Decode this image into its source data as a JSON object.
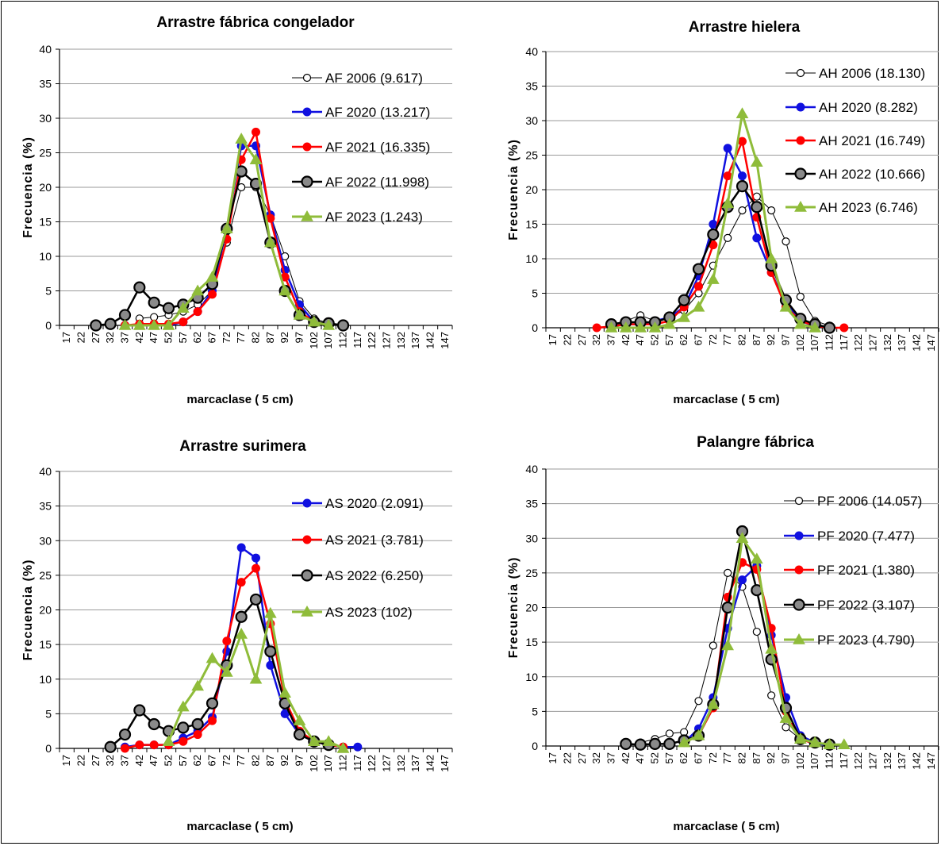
{
  "chart_data": [
    {
      "type": "line",
      "title": "Arrastre fábrica congelador",
      "xlabel": "marcaclase ( 5 cm)",
      "ylabel": "Frecuencia  (%)",
      "ylim": [
        0,
        40
      ],
      "yticks": [
        0,
        5,
        10,
        15,
        20,
        25,
        30,
        35,
        40
      ],
      "categories": [
        "17",
        "22",
        "27",
        "32",
        "37",
        "42",
        "47",
        "52",
        "57",
        "62",
        "67",
        "72",
        "77",
        "82",
        "87",
        "92",
        "97",
        "102",
        "107",
        "112",
        "117",
        "122",
        "127",
        "132",
        "137",
        "142",
        "147"
      ],
      "grid": "horizontal",
      "legend_position": "right",
      "series": [
        {
          "name": "AF 2006 (9.617)",
          "color": "#000000",
          "marker": "open-circle",
          "lineWidth": 1,
          "x": [
            42,
            47,
            52,
            57,
            62,
            67,
            72,
            77,
            82,
            87,
            92,
            97,
            102,
            107
          ],
          "y": [
            1,
            1.2,
            1.5,
            2,
            3,
            5,
            12,
            20,
            20,
            16,
            10,
            3.5,
            1,
            0.3
          ]
        },
        {
          "name": "AF 2020 (13.217)",
          "color": "#1010e0",
          "marker": "filled-circle",
          "lineWidth": 2.5,
          "x": [
            37,
            42,
            47,
            52,
            57,
            62,
            67,
            72,
            77,
            82,
            87,
            92,
            97,
            102,
            107
          ],
          "y": [
            0,
            0,
            0,
            0,
            0.5,
            2,
            5,
            14,
            26,
            26,
            16,
            8,
            3,
            0.5,
            0
          ]
        },
        {
          "name": "AF 2021 (16.335)",
          "color": "#ff0000",
          "marker": "filled-circle",
          "lineWidth": 2.5,
          "x": [
            37,
            42,
            47,
            52,
            57,
            62,
            67,
            72,
            77,
            82,
            87,
            92,
            97,
            102,
            107
          ],
          "y": [
            0,
            0.2,
            0.2,
            0.2,
            0.5,
            2,
            4.5,
            12.5,
            24,
            28,
            15.5,
            7,
            2,
            0.5,
            0
          ]
        },
        {
          "name": "AF 2022 (11.998)",
          "color": "#000000",
          "marker": "grey-circle",
          "lineWidth": 2.5,
          "x": [
            27,
            32,
            37,
            42,
            47,
            52,
            57,
            62,
            67,
            72,
            77,
            82,
            87,
            92,
            97,
            102,
            107,
            112
          ],
          "y": [
            0,
            0.2,
            1.5,
            5.5,
            3.3,
            2.5,
            3,
            4,
            6,
            14,
            22.3,
            20.5,
            12,
            5,
            1.5,
            0.5,
            0.3,
            0
          ]
        },
        {
          "name": "AF 2023 (1.243)",
          "color": "#8fbc3a",
          "marker": "triangle",
          "lineWidth": 3,
          "x": [
            37,
            42,
            47,
            52,
            57,
            62,
            67,
            72,
            77,
            82,
            87,
            92,
            97,
            102,
            107
          ],
          "y": [
            0,
            0,
            0,
            0,
            2.5,
            5,
            7,
            14,
            27,
            24,
            12,
            5,
            1.5,
            0.5,
            0
          ]
        }
      ]
    },
    {
      "type": "line",
      "title": "Arrastre hielera",
      "xlabel": "marcaclase ( 5 cm)",
      "ylabel": "Frecuencia  (%)",
      "ylim": [
        0,
        40
      ],
      "yticks": [
        0,
        5,
        10,
        15,
        20,
        25,
        30,
        35,
        40
      ],
      "categories": [
        "17",
        "22",
        "27",
        "32",
        "37",
        "42",
        "47",
        "52",
        "57",
        "62",
        "67",
        "72",
        "77",
        "82",
        "87",
        "92",
        "97",
        "102",
        "107",
        "112",
        "117",
        "122",
        "127",
        "132",
        "137",
        "142",
        "147"
      ],
      "grid": "horizontal",
      "legend_position": "right",
      "series": [
        {
          "name": "AH 2006 (18.130)",
          "color": "#000000",
          "marker": "open-circle",
          "lineWidth": 1,
          "x": [
            37,
            42,
            47,
            52,
            57,
            62,
            67,
            72,
            77,
            82,
            87,
            92,
            97,
            102,
            107,
            112
          ],
          "y": [
            0.5,
            1,
            1.8,
            1,
            1.5,
            2.5,
            5,
            9,
            13,
            17,
            19,
            17,
            12.5,
            4.5,
            1,
            0.3
          ]
        },
        {
          "name": "AH 2020 (8.282)",
          "color": "#1010e0",
          "marker": "filled-circle",
          "lineWidth": 2.5,
          "x": [
            37,
            42,
            47,
            52,
            57,
            62,
            67,
            72,
            77,
            82,
            87,
            92,
            97,
            102,
            107
          ],
          "y": [
            0.2,
            0.5,
            0.5,
            1,
            1.5,
            3,
            7.5,
            15,
            26,
            22,
            13,
            8,
            3.5,
            1,
            0.2
          ]
        },
        {
          "name": "AH 2021 (16.749)",
          "color": "#ff0000",
          "marker": "filled-circle",
          "lineWidth": 2.5,
          "x": [
            32,
            37,
            42,
            47,
            52,
            57,
            62,
            67,
            72,
            77,
            82,
            87,
            92,
            97,
            102,
            107,
            112,
            117
          ],
          "y": [
            0,
            0.2,
            0.5,
            0.5,
            0.5,
            1,
            3,
            6,
            12,
            22,
            27,
            16,
            8,
            3,
            1,
            0.3,
            0,
            0
          ]
        },
        {
          "name": "AH 2022 (10.666)",
          "color": "#000000",
          "marker": "grey-circle",
          "lineWidth": 2.5,
          "x": [
            37,
            42,
            47,
            52,
            57,
            62,
            67,
            72,
            77,
            82,
            87,
            92,
            97,
            102,
            107,
            112
          ],
          "y": [
            0.5,
            0.8,
            0.8,
            0.8,
            1.5,
            4,
            8.5,
            13.5,
            17.5,
            20.5,
            17.5,
            9,
            4,
            1.3,
            0.5,
            0
          ]
        },
        {
          "name": "AH 2023 (6.746)",
          "color": "#8fbc3a",
          "marker": "triangle",
          "lineWidth": 3,
          "x": [
            37,
            42,
            47,
            52,
            57,
            62,
            67,
            72,
            77,
            82,
            87,
            92,
            97,
            102,
            107
          ],
          "y": [
            0,
            0,
            0,
            0,
            0.5,
            1.5,
            3,
            7,
            18,
            31,
            24,
            10,
            3,
            0.5,
            0
          ]
        }
      ]
    },
    {
      "type": "line",
      "title": "Arrastre surimera",
      "xlabel": "marcaclase ( 5 cm)",
      "ylabel": "Frecuencia  (%)",
      "ylim": [
        0,
        40
      ],
      "yticks": [
        0,
        5,
        10,
        15,
        20,
        25,
        30,
        35,
        40
      ],
      "categories": [
        "17",
        "22",
        "27",
        "32",
        "37",
        "42",
        "47",
        "52",
        "57",
        "62",
        "67",
        "72",
        "77",
        "82",
        "87",
        "92",
        "97",
        "102",
        "107",
        "112",
        "117",
        "122",
        "127",
        "132",
        "137",
        "142",
        "147"
      ],
      "grid": "horizontal",
      "legend_position": "right",
      "series": [
        {
          "name": "AS 2020 (2.091)",
          "color": "#1010e0",
          "marker": "filled-circle",
          "lineWidth": 2.5,
          "x": [
            37,
            42,
            47,
            52,
            57,
            62,
            67,
            72,
            77,
            82,
            87,
            92,
            97,
            102,
            107,
            112,
            117
          ],
          "y": [
            0.2,
            0.5,
            0.5,
            0.5,
            1.5,
            2.5,
            4.5,
            14,
            29,
            27.5,
            12,
            5,
            2,
            1,
            0.5,
            0.2,
            0.2
          ]
        },
        {
          "name": "AS 2021 (3.781)",
          "color": "#ff0000",
          "marker": "filled-circle",
          "lineWidth": 2.5,
          "x": [
            37,
            42,
            47,
            52,
            57,
            62,
            67,
            72,
            77,
            82,
            87,
            92,
            97,
            102,
            107,
            112
          ],
          "y": [
            0,
            0.5,
            0.5,
            0.5,
            1,
            2,
            4,
            15.5,
            24,
            26,
            18,
            7,
            2.5,
            1,
            0.5,
            0.2
          ]
        },
        {
          "name": "AS 2022 (6.250)",
          "color": "#000000",
          "marker": "grey-circle",
          "lineWidth": 2.5,
          "x": [
            32,
            37,
            42,
            47,
            52,
            57,
            62,
            67,
            72,
            77,
            82,
            87,
            92,
            97,
            102,
            107
          ],
          "y": [
            0.2,
            2,
            5.5,
            3.5,
            2.5,
            3,
            3.5,
            6.5,
            12,
            19,
            21.5,
            14,
            6.5,
            2,
            1,
            0.5
          ]
        },
        {
          "name": "AS 2023 (102)",
          "color": "#8fbc3a",
          "marker": "triangle",
          "lineWidth": 3,
          "x": [
            52,
            57,
            62,
            67,
            72,
            77,
            82,
            87,
            92,
            97,
            102,
            107,
            112
          ],
          "y": [
            1,
            6,
            9,
            13,
            11,
            16.5,
            10,
            19.5,
            8,
            4,
            1,
            1,
            0
          ]
        }
      ]
    },
    {
      "type": "line",
      "title": "Palangre fábrica",
      "xlabel": "marcaclase ( 5 cm)",
      "ylabel": "Frecuencia  (%)",
      "ylim": [
        0,
        40
      ],
      "yticks": [
        0,
        5,
        10,
        15,
        20,
        25,
        30,
        35,
        40
      ],
      "categories": [
        "17",
        "22",
        "27",
        "32",
        "37",
        "42",
        "47",
        "52",
        "57",
        "62",
        "67",
        "72",
        "77",
        "82",
        "87",
        "92",
        "97",
        "102",
        "107",
        "112",
        "117",
        "122",
        "127",
        "132",
        "137",
        "142",
        "147"
      ],
      "grid": "horizontal",
      "legend_position": "right",
      "series": [
        {
          "name": "PF 2006 (14.057)",
          "color": "#000000",
          "marker": "open-circle",
          "lineWidth": 1,
          "x": [
            47,
            52,
            57,
            62,
            67,
            72,
            77,
            82,
            87,
            92,
            97,
            102,
            107
          ],
          "y": [
            0.5,
            1,
            1.8,
            2,
            6.5,
            14.5,
            25,
            23,
            16.5,
            7.3,
            2.7,
            1,
            0.3
          ]
        },
        {
          "name": "PF 2020 (7.477)",
          "color": "#1010e0",
          "marker": "filled-circle",
          "lineWidth": 2.5,
          "x": [
            62,
            67,
            72,
            77,
            82,
            87,
            92,
            97,
            102,
            107,
            112
          ],
          "y": [
            0.5,
            2.5,
            7,
            17,
            24,
            26,
            16,
            7,
            1.5,
            0.5,
            0
          ]
        },
        {
          "name": "PF 2021 (1.380)",
          "color": "#ff0000",
          "marker": "filled-circle",
          "lineWidth": 2.5,
          "x": [
            62,
            67,
            72,
            77,
            82,
            87,
            92,
            97,
            102,
            107
          ],
          "y": [
            0.5,
            1.5,
            5.5,
            21.5,
            26.5,
            25.5,
            17,
            5,
            1,
            0.3
          ]
        },
        {
          "name": "PF 2022 (3.107)",
          "color": "#000000",
          "marker": "grey-circle",
          "lineWidth": 2.5,
          "x": [
            42,
            47,
            52,
            57,
            62,
            67,
            72,
            77,
            82,
            87,
            92,
            97,
            102,
            107,
            112
          ],
          "y": [
            0.3,
            0.2,
            0.3,
            0.3,
            0.8,
            1.5,
            6,
            20,
            31,
            22.5,
            12.5,
            5.5,
            1,
            0.5,
            0.2
          ]
        },
        {
          "name": "PF 2023 (4.790)",
          "color": "#8fbc3a",
          "marker": "triangle",
          "lineWidth": 3,
          "x": [
            62,
            67,
            72,
            77,
            82,
            87,
            92,
            97,
            102,
            107,
            112,
            117
          ],
          "y": [
            0.5,
            1.5,
            6,
            14.5,
            30,
            27,
            14,
            4,
            1,
            0.5,
            0.2,
            0.2
          ]
        }
      ]
    }
  ]
}
